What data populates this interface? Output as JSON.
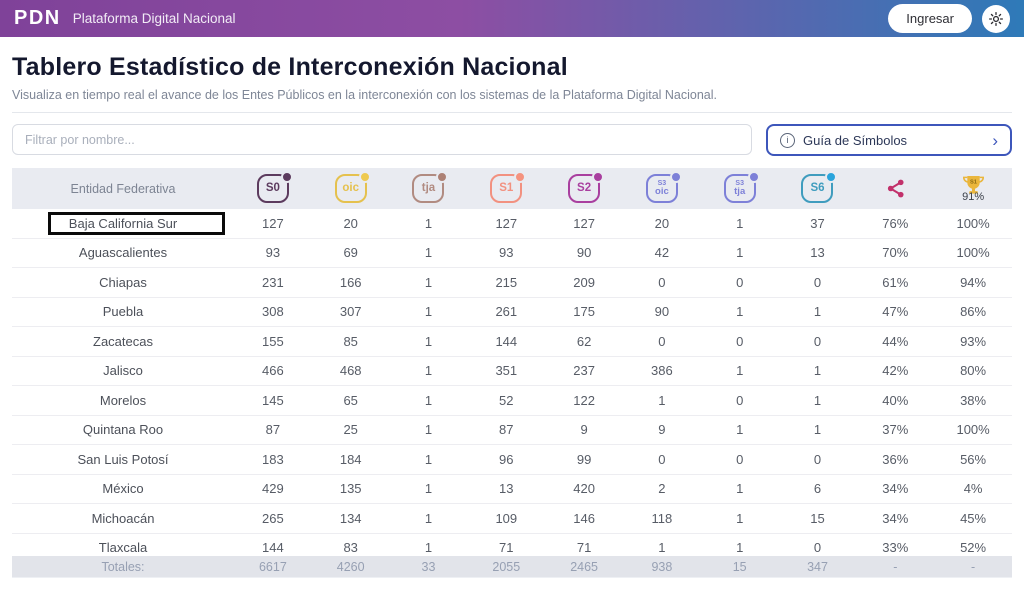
{
  "topbar": {
    "logo": "PDN",
    "brand": "Plataforma Digital Nacional",
    "login_label": "Ingresar",
    "theme_icon": "sun-icon",
    "gradient_left": "#7f4299",
    "gradient_right": "#2e7ab8"
  },
  "page": {
    "title": "Tablero Estadístico de Interconexión Nacional",
    "subtitle": "Visualiza en tiempo real el avance de los Entes Públicos en la interconexión con los sistemas de la Plataforma Digital Nacional."
  },
  "filter": {
    "placeholder": "Filtrar por nombre..."
  },
  "symbols_button": {
    "info_glyph": "i",
    "label": "Guía de Símbolos",
    "chevron": "›",
    "border_color": "#3d56bb"
  },
  "table": {
    "first_header": "Entidad Federativa",
    "icon_columns": [
      {
        "id": "s0",
        "type": "badge",
        "label": "S0",
        "color": "#5c3b5e",
        "dot": "#5c3b5e"
      },
      {
        "id": "oic",
        "type": "badge",
        "label": "oic",
        "color": "#e5c14e",
        "dot": "#eec94f"
      },
      {
        "id": "tja",
        "type": "badge",
        "label": "tja",
        "color": "#b18b81",
        "dot": "#ad8175"
      },
      {
        "id": "s1",
        "type": "badge",
        "label": "S1",
        "color": "#f29180",
        "dot": "#f5937f"
      },
      {
        "id": "s2",
        "type": "badge",
        "label": "S2",
        "color": "#a93f9f",
        "dot": "#a93f9f"
      },
      {
        "id": "s3oic",
        "type": "badge",
        "label": "oic",
        "small": "S3",
        "color": "#7d80d8",
        "dot": "#7d80d8"
      },
      {
        "id": "s3tja",
        "type": "badge",
        "label": "tja",
        "small": "S3",
        "color": "#7d80d8",
        "dot": "#7d80d8"
      },
      {
        "id": "s6",
        "type": "badge",
        "label": "S6",
        "color": "#3f9cbe",
        "dot": "#2aa4dc"
      },
      {
        "id": "share",
        "type": "share",
        "color": "#c2316b"
      },
      {
        "id": "trophy",
        "type": "trophy",
        "label": "S1",
        "value": "91%",
        "color": "#eab63c"
      }
    ],
    "rows": [
      {
        "name": "Baja California Sur",
        "highlighted": true,
        "values": [
          "127",
          "20",
          "1",
          "127",
          "127",
          "20",
          "1",
          "37",
          "76%",
          "100%"
        ]
      },
      {
        "name": "Aguascalientes",
        "values": [
          "93",
          "69",
          "1",
          "93",
          "90",
          "42",
          "1",
          "13",
          "70%",
          "100%"
        ]
      },
      {
        "name": "Chiapas",
        "values": [
          "231",
          "166",
          "1",
          "215",
          "209",
          "0",
          "0",
          "0",
          "61%",
          "94%"
        ]
      },
      {
        "name": "Puebla",
        "values": [
          "308",
          "307",
          "1",
          "261",
          "175",
          "90",
          "1",
          "1",
          "47%",
          "86%"
        ]
      },
      {
        "name": "Zacatecas",
        "values": [
          "155",
          "85",
          "1",
          "144",
          "62",
          "0",
          "0",
          "0",
          "44%",
          "93%"
        ]
      },
      {
        "name": "Jalisco",
        "values": [
          "466",
          "468",
          "1",
          "351",
          "237",
          "386",
          "1",
          "1",
          "42%",
          "80%"
        ]
      },
      {
        "name": "Morelos",
        "values": [
          "145",
          "65",
          "1",
          "52",
          "122",
          "1",
          "0",
          "1",
          "40%",
          "38%"
        ]
      },
      {
        "name": "Quintana Roo",
        "values": [
          "87",
          "25",
          "1",
          "87",
          "9",
          "9",
          "1",
          "1",
          "37%",
          "100%"
        ]
      },
      {
        "name": "San Luis Potosí",
        "values": [
          "183",
          "184",
          "1",
          "96",
          "99",
          "0",
          "0",
          "0",
          "36%",
          "56%"
        ]
      },
      {
        "name": "México",
        "values": [
          "429",
          "135",
          "1",
          "13",
          "420",
          "2",
          "1",
          "6",
          "34%",
          "4%"
        ]
      },
      {
        "name": "Michoacán",
        "values": [
          "265",
          "134",
          "1",
          "109",
          "146",
          "118",
          "1",
          "15",
          "34%",
          "45%"
        ]
      },
      {
        "name": "Tlaxcala",
        "values": [
          "144",
          "83",
          "1",
          "71",
          "71",
          "1",
          "1",
          "0",
          "33%",
          "52%"
        ]
      }
    ],
    "totals": {
      "label": "Totales:",
      "values": [
        "6617",
        "4260",
        "33",
        "2055",
        "2465",
        "938",
        "15",
        "347",
        "-",
        "-"
      ]
    }
  }
}
